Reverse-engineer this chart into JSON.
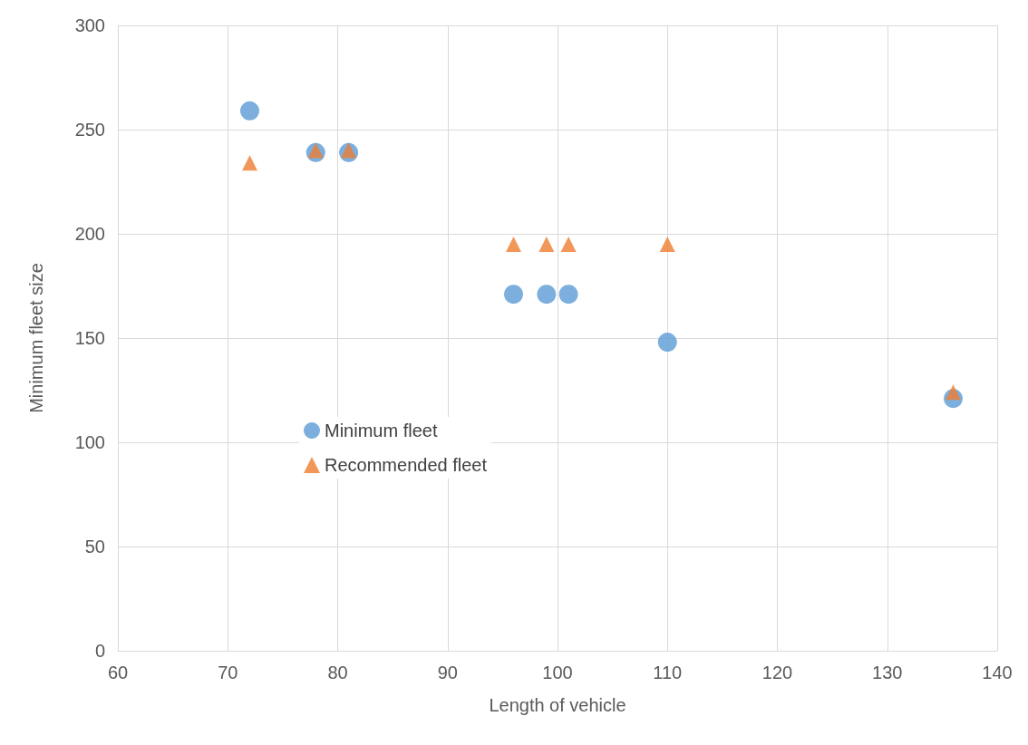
{
  "chart_data": {
    "type": "scatter",
    "xlabel": "Length of vehicle",
    "ylabel": "Minimum fleet size",
    "xlim": [
      60,
      140
    ],
    "xticks": [
      60,
      70,
      80,
      90,
      100,
      110,
      120,
      130,
      140
    ],
    "ylim": [
      0,
      300
    ],
    "yticks": [
      0,
      50,
      100,
      150,
      200,
      250,
      300
    ],
    "grid": true,
    "legend": "left",
    "series": [
      {
        "name": "Minimum fleet",
        "color": "#5b9bd5",
        "marker": "circle",
        "x": [
          72,
          78,
          81,
          96,
          99,
          101,
          110,
          136
        ],
        "values": [
          259,
          239,
          239,
          171,
          171,
          171,
          148,
          121
        ]
      },
      {
        "name": "Recommended fleet",
        "color": "#ed7d31",
        "marker": "triangle",
        "x": [
          72,
          78,
          81,
          96,
          99,
          101,
          110,
          136
        ],
        "values": [
          234,
          240,
          240,
          195,
          195,
          195,
          195,
          124
        ]
      }
    ]
  }
}
